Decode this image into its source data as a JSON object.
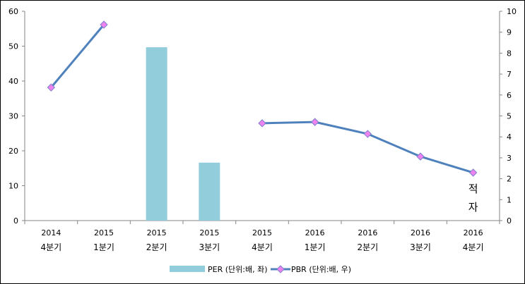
{
  "chart_data": {
    "type": "bar+line",
    "title": "",
    "categories": [
      {
        "year": "2014",
        "quarter": "4분기"
      },
      {
        "year": "2015",
        "quarter": "1분기"
      },
      {
        "year": "2015",
        "quarter": "2분기"
      },
      {
        "year": "2015",
        "quarter": "3분기"
      },
      {
        "year": "2015",
        "quarter": "4분기"
      },
      {
        "year": "2016",
        "quarter": "1분기"
      },
      {
        "year": "2016",
        "quarter": "2분기"
      },
      {
        "year": "2016",
        "quarter": "3분기"
      },
      {
        "year": "2016",
        "quarter": "4분기"
      }
    ],
    "series": [
      {
        "name": "PER (단위:배, 좌)",
        "type": "bar",
        "axis": "left",
        "color": "#92cddc",
        "values": [
          null,
          null,
          49.7,
          16.6,
          null,
          null,
          null,
          null,
          null
        ]
      },
      {
        "name": "PBR (단위:배, 우)",
        "type": "line",
        "axis": "right",
        "color": "#4f81bd",
        "marker_color": "#ee82ee",
        "values": [
          6.36,
          9.36,
          null,
          null,
          4.65,
          4.71,
          4.14,
          3.06,
          2.29
        ]
      }
    ],
    "left_axis": {
      "ylim": [
        0,
        60
      ],
      "ticks": [
        "0",
        "10",
        "20",
        "30",
        "40",
        "50",
        "60"
      ]
    },
    "right_axis": {
      "ylim": [
        0,
        10
      ],
      "ticks": [
        "0",
        "1",
        "2",
        "3",
        "4",
        "5",
        "6",
        "7",
        "8",
        "9",
        "10"
      ]
    },
    "annotations": [
      {
        "category_index": 8,
        "text": [
          "적",
          "자"
        ]
      }
    ],
    "legend": "bottom",
    "grid": false
  }
}
